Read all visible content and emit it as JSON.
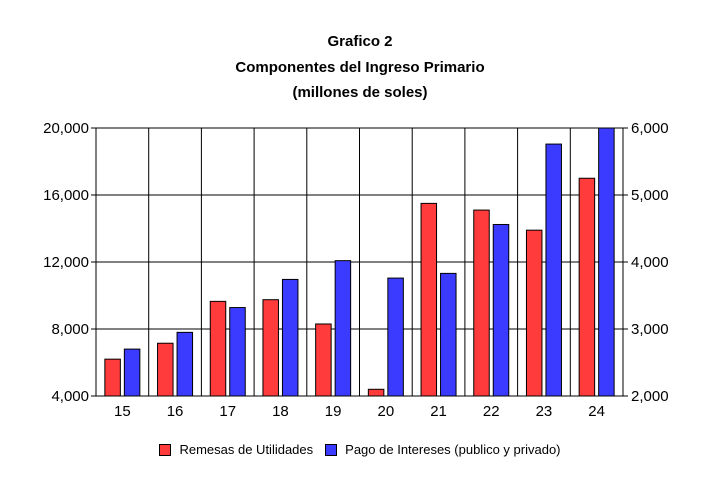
{
  "title_lines": [
    "Grafico 2",
    "Componentes del Ingreso Primario",
    "(millones de soles)"
  ],
  "chart_data": {
    "type": "bar",
    "categories": [
      "15",
      "16",
      "17",
      "18",
      "19",
      "20",
      "21",
      "22",
      "23",
      "24"
    ],
    "series": [
      {
        "name": "Remesas de Utilidades",
        "axis": "left",
        "color": "#ff3b3b",
        "values": [
          6200,
          7150,
          9650,
          9750,
          8300,
          4400,
          15500,
          15100,
          13900,
          17000
        ]
      },
      {
        "name": "Pago de Intereses (publico y privado)",
        "axis": "right",
        "color": "#3b3bff",
        "values": [
          2700,
          2950,
          3320,
          3740,
          4020,
          3760,
          3830,
          4560,
          5760,
          6000
        ]
      }
    ],
    "y_left": {
      "min": 4000,
      "max": 20000,
      "ticks": [
        "4,000",
        "8,000",
        "12,000",
        "16,000",
        "20,000"
      ],
      "tick_values": [
        4000,
        8000,
        12000,
        16000,
        20000
      ]
    },
    "y_right": {
      "min": 2000,
      "max": 6000,
      "ticks": [
        "2,000",
        "3,000",
        "4,000",
        "5,000",
        "6,000"
      ],
      "tick_values": [
        2000,
        3000,
        4000,
        5000,
        6000
      ]
    },
    "grid": true,
    "legend_position": "bottom"
  }
}
